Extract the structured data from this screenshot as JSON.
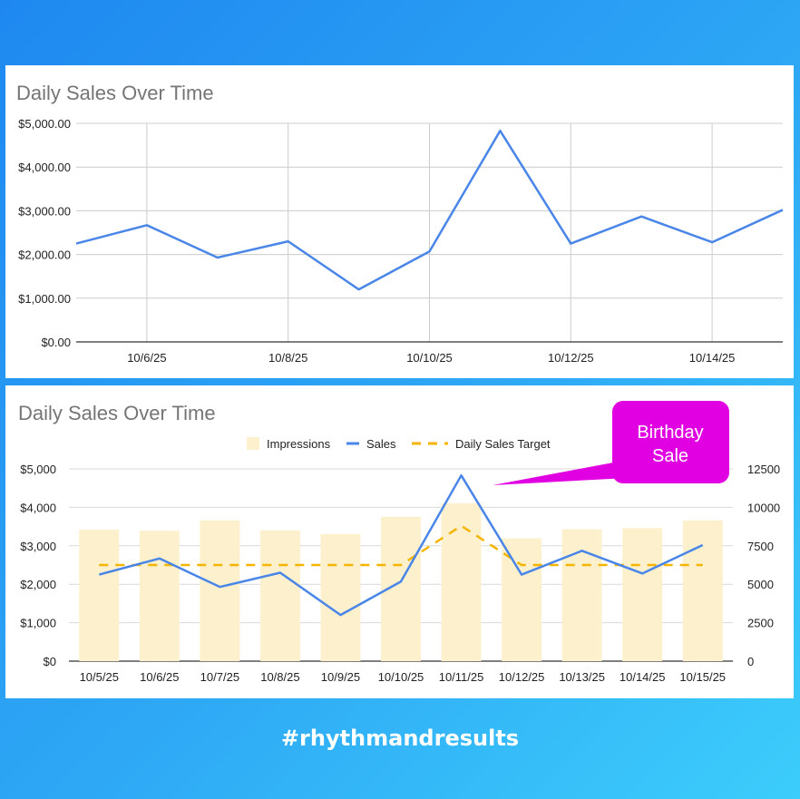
{
  "chart_data": [
    {
      "type": "line",
      "title": "Daily Sales Over Time",
      "x": [
        "10/5/25",
        "10/6/25",
        "10/7/25",
        "10/8/25",
        "10/9/25",
        "10/10/25",
        "10/11/25",
        "10/12/25",
        "10/13/25",
        "10/14/25",
        "10/15/25"
      ],
      "x_tick_labels": [
        "10/6/25",
        "10/8/25",
        "10/10/25",
        "10/12/25",
        "10/14/25"
      ],
      "series": [
        {
          "values": [
            2250,
            2670,
            1930,
            2300,
            1200,
            2070,
            4830,
            2250,
            2870,
            2280,
            3020
          ]
        }
      ],
      "ylim": [
        0,
        5000
      ],
      "y_tick_labels": [
        "$0.00",
        "$1,000.00",
        "$2,000.00",
        "$3,000.00",
        "$4,000.00",
        "$5,000.00"
      ],
      "grid": true,
      "colors": {
        "sales": "#4a86e8"
      }
    },
    {
      "type": "bar",
      "title": "Daily Sales Over Time",
      "categories": [
        "10/5/25",
        "10/6/25",
        "10/7/25",
        "10/8/25",
        "10/9/25",
        "10/10/25",
        "10/11/25",
        "10/12/25",
        "10/13/25",
        "10/14/25",
        "10/15/25"
      ],
      "series": [
        {
          "name": "Impressions",
          "type": "bar",
          "axis": "right",
          "values": [
            8550,
            8480,
            9150,
            8500,
            8270,
            9380,
            10270,
            7980,
            8580,
            8650,
            9150
          ]
        },
        {
          "name": "Sales",
          "type": "line",
          "axis": "left",
          "values": [
            2250,
            2670,
            1930,
            2300,
            1200,
            2070,
            4830,
            2250,
            2870,
            2280,
            3020
          ]
        },
        {
          "name": "Daily Sales Target",
          "type": "line",
          "dashed": true,
          "axis": "left",
          "values": [
            2500,
            2500,
            2500,
            2500,
            2500,
            2500,
            3520,
            2500,
            2500,
            2500,
            2500
          ]
        }
      ],
      "ylim": [
        0,
        5000
      ],
      "y_tick_labels": [
        "$0",
        "$1,000",
        "$2,000",
        "$3,000",
        "$4,000",
        "$5,000"
      ],
      "y2lim": [
        0,
        12500
      ],
      "y2_tick_labels": [
        "0",
        "2500",
        "5000",
        "7500",
        "10000",
        "12500"
      ],
      "legend": "top",
      "grid": true,
      "annotation": {
        "lines": [
          "Birthday",
          "Sale"
        ],
        "points_to": "10/11/25"
      },
      "colors": {
        "impressions": "#fdf0cd",
        "sales": "#4a86e8",
        "target": "#f4b400",
        "callout": "#e100e1"
      }
    }
  ],
  "footer": {
    "hashtag": "#rhythmandresults"
  }
}
